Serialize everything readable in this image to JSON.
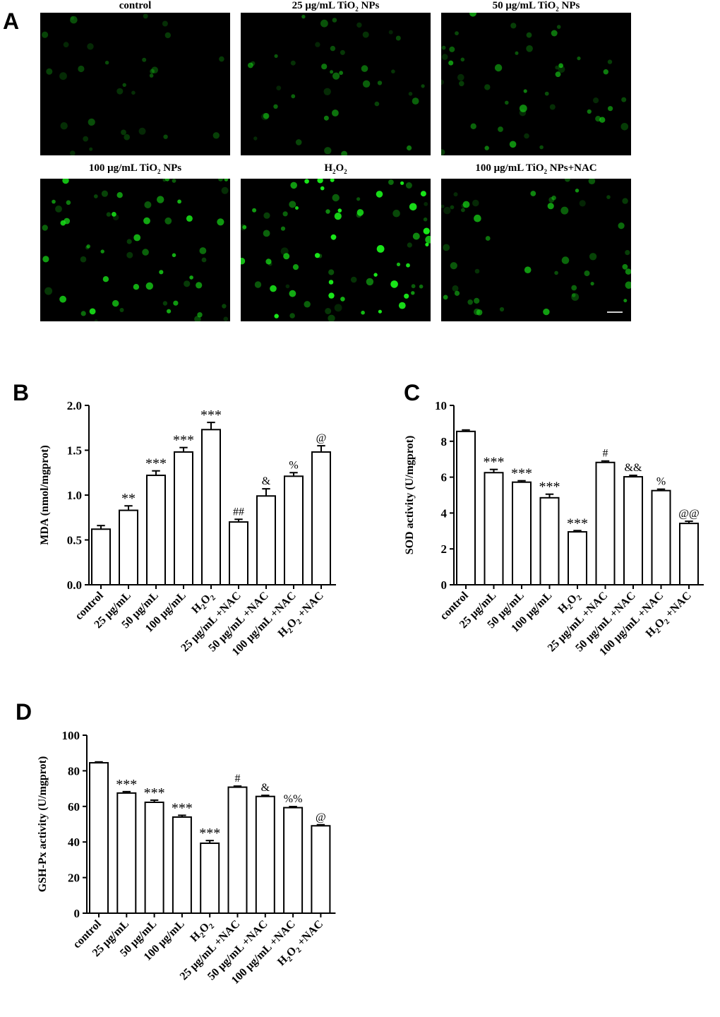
{
  "panel_labels": {
    "a": "A",
    "b": "B",
    "c": "C",
    "d": "D"
  },
  "micrographs": [
    {
      "label": "control",
      "brightness": 0.18
    },
    {
      "label": "25 μg/mL  TiO",
      "sub": "2",
      "after": " NPs",
      "brightness": 0.35
    },
    {
      "label": "50 μg/mL  TiO",
      "sub": "2",
      "after": " NPs",
      "brightness": 0.45
    },
    {
      "label": "100 μg/mL  TiO",
      "sub": "2",
      "after": " NPs",
      "brightness": 0.7
    },
    {
      "label": "H",
      "sub": "2",
      "after": "O",
      "sub2": "2",
      "brightness": 0.95
    },
    {
      "label": "100 μg/mL  TiO",
      "sub": "2",
      "after": " NPs+NAC",
      "brightness": 0.5
    }
  ],
  "colors": {
    "fluorescence": "#19e619",
    "background": "#000000",
    "bar_fill": "#ffffff",
    "stroke": "#000000"
  },
  "chart_data": [
    {
      "type": "bar",
      "panel": "B",
      "ylabel": "MDA (nmol/mgprot)",
      "ylim": [
        0,
        2.0
      ],
      "yticks": [
        "0.0",
        "0.5",
        "1.0",
        "1.5",
        "2.0"
      ],
      "categories": [
        "control",
        "25 μg/mL",
        "50 μg/mL",
        "100 μg/mL",
        "H2O2",
        "25 μg/mL +NAC",
        "50 μg/mL +NAC",
        "100 μg/mL +NAC",
        "H2O2 +NAC"
      ],
      "values": [
        0.62,
        0.83,
        1.22,
        1.48,
        1.73,
        0.7,
        0.99,
        1.21,
        1.48
      ],
      "errors": [
        0.04,
        0.05,
        0.05,
        0.05,
        0.08,
        0.03,
        0.08,
        0.04,
        0.07
      ],
      "annotations": [
        "",
        "**",
        "***",
        "***",
        "***",
        "##",
        "&",
        "%",
        "@"
      ]
    },
    {
      "type": "bar",
      "panel": "C",
      "ylabel": "SOD activity (U/mgprot)",
      "ylim": [
        0,
        10
      ],
      "yticks": [
        "0",
        "2",
        "4",
        "6",
        "8",
        "10"
      ],
      "categories": [
        "control",
        "25 μg/mL",
        "50 μg/mL",
        "100 μg/mL",
        "H2O2",
        "25 μg/mL +NAC",
        "50 μg/mL +NAC",
        "100 μg/mL +NAC",
        "H2O2 +NAC"
      ],
      "values": [
        8.55,
        6.25,
        5.72,
        4.85,
        2.95,
        6.82,
        6.02,
        5.25,
        3.42
      ],
      "errors": [
        0.08,
        0.18,
        0.08,
        0.2,
        0.07,
        0.08,
        0.08,
        0.08,
        0.12
      ],
      "annotations": [
        "",
        "***",
        "***",
        "***",
        "***",
        "#",
        "&&",
        "%",
        "@@"
      ]
    },
    {
      "type": "bar",
      "panel": "D",
      "ylabel": "GSH-Px activity (U/mgprot)",
      "ylim": [
        0,
        100
      ],
      "yticks": [
        "0",
        "20",
        "40",
        "60",
        "80",
        "100"
      ],
      "categories": [
        "control",
        "25 μg/mL",
        "50 μg/mL",
        "100 μg/mL",
        "H2O2",
        "25 μg/mL +NAC",
        "50 μg/mL +NAC",
        "100 μg/mL +NAC",
        "H2O2 +NAC"
      ],
      "values": [
        84.5,
        67.5,
        62.3,
        54.0,
        39.3,
        70.8,
        65.6,
        59.3,
        49.1
      ],
      "errors": [
        0.5,
        0.8,
        1.2,
        1.0,
        1.5,
        0.6,
        0.6,
        0.6,
        0.6
      ],
      "annotations": [
        "",
        "***",
        "***",
        "***",
        "***",
        "#",
        "&",
        "%%",
        "@"
      ]
    }
  ]
}
